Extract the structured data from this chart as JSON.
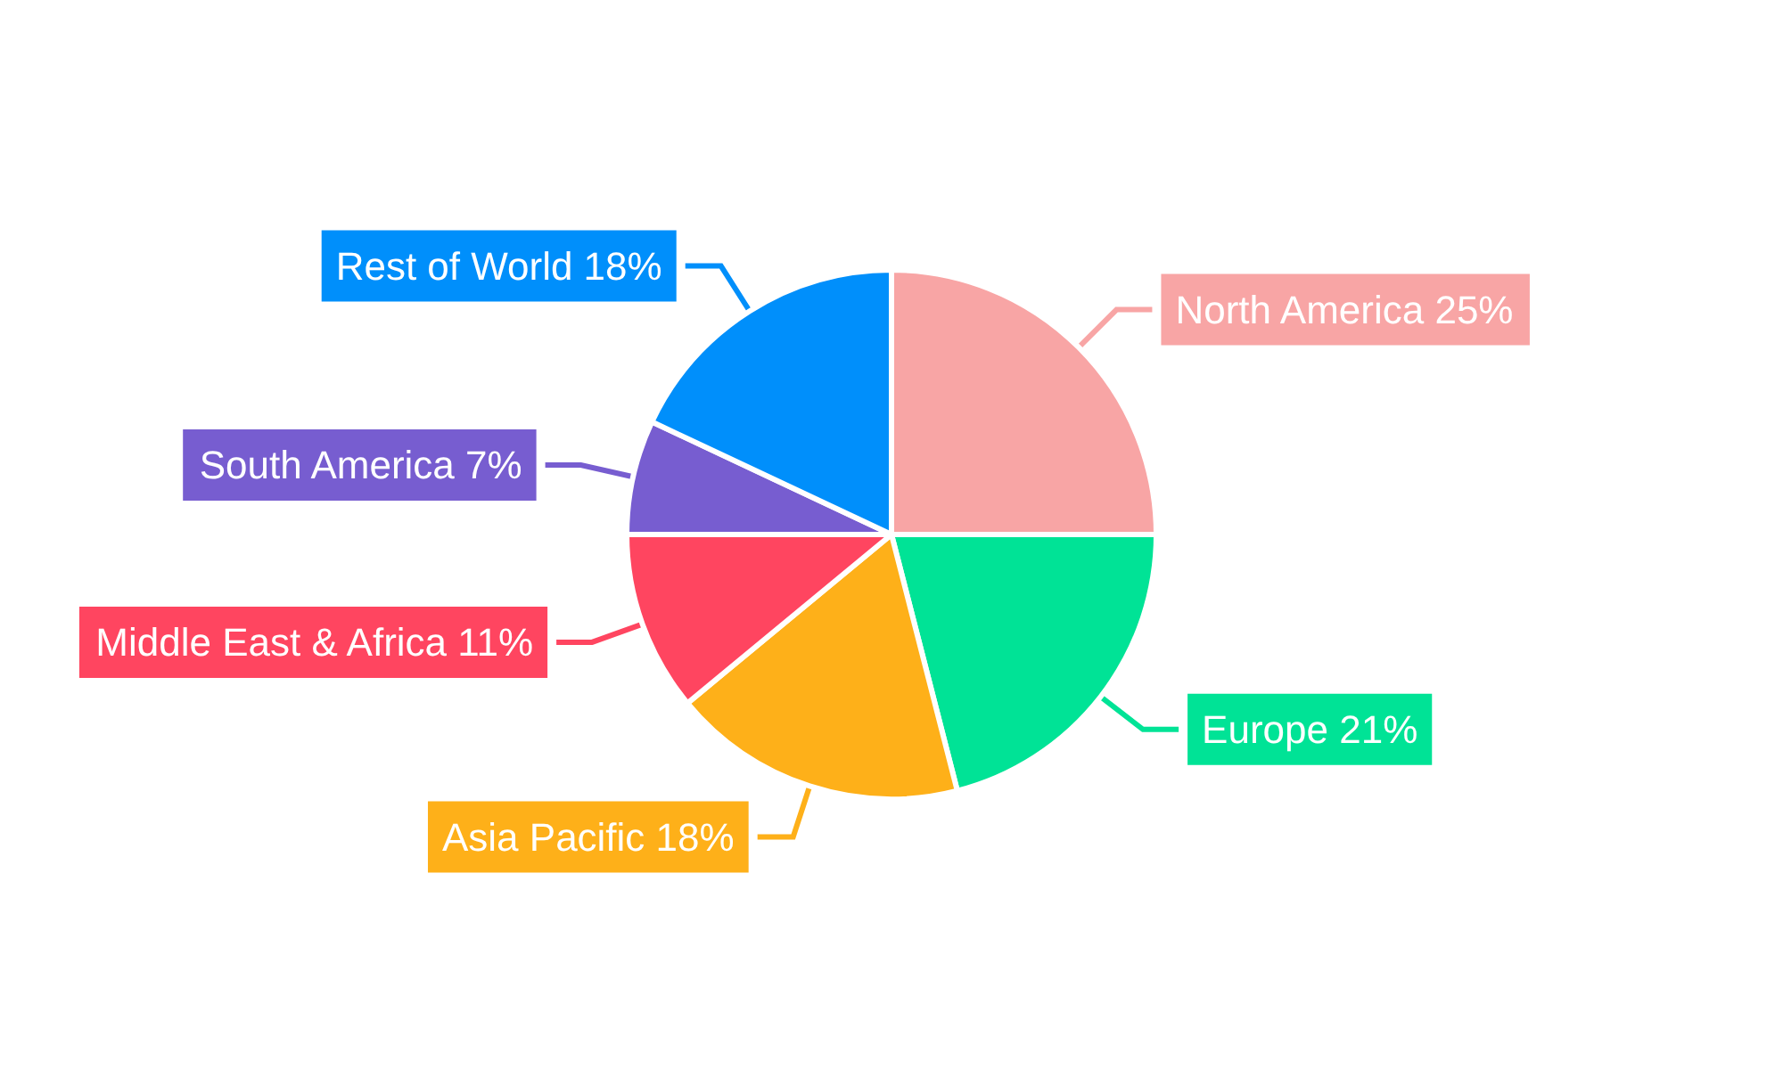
{
  "chart_data": {
    "type": "pie",
    "categories": [
      "North America",
      "Europe",
      "Asia Pacific",
      "Middle East & Africa",
      "South America",
      "Rest of World"
    ],
    "values": [
      25,
      21,
      18,
      11,
      7,
      18
    ],
    "value_labels": [
      "25%",
      "21%",
      "18%",
      "11%",
      "7%",
      "18%"
    ],
    "colors": [
      "#f8a5a5",
      "#00e396",
      "#feb019",
      "#ff4560",
      "#775dd0",
      "#008ffb"
    ],
    "legend": false
  }
}
